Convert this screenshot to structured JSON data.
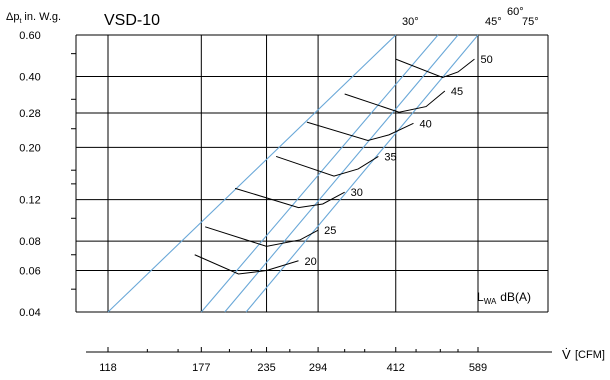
{
  "chart_data": {
    "type": "line",
    "title": "VSD-10",
    "ylabel": "Δp",
    "ylabel_sub": "t",
    "ylabel_unit": "in. W.g.",
    "xlabel": "V̇",
    "xlabel_unit": "[CFM]",
    "x_ticks": [
      "118",
      "177",
      "235",
      "294",
      "412",
      "589"
    ],
    "y_ticks": [
      "0.60",
      "0.40",
      "0.28",
      "0.20",
      "0.12",
      "0.08",
      "0.06",
      "0.04"
    ],
    "legend": {
      "main": "L",
      "sub": "WA",
      "unit": "dB(A)"
    },
    "grid": true,
    "colors": {
      "angle_lines": "#6aa8d8",
      "curves": "#000000",
      "grid": "#000000"
    },
    "angle_lines": [
      {
        "label": "30°",
        "points": [
          [
            118,
            0.04
          ],
          [
            412,
            0.6
          ]
        ]
      },
      {
        "label": "45°",
        "points": [
          [
            177,
            0.04
          ],
          [
            495,
            0.6
          ]
        ]
      },
      {
        "label": "60°",
        "points": [
          [
            196,
            0.04
          ],
          [
            540,
            0.6
          ]
        ]
      },
      {
        "label": "75°",
        "points": [
          [
            215,
            0.04
          ],
          [
            589,
            0.6
          ]
        ]
      }
    ],
    "series": [
      {
        "name": "20",
        "points": [
          [
            172,
            0.07
          ],
          [
            208,
            0.058
          ],
          [
            235,
            0.06
          ],
          [
            270,
            0.066
          ]
        ]
      },
      {
        "name": "25",
        "points": [
          [
            180,
            0.092
          ],
          [
            235,
            0.076
          ],
          [
            272,
            0.081
          ],
          [
            294,
            0.089
          ]
        ]
      },
      {
        "name": "30",
        "points": [
          [
            205,
            0.134
          ],
          [
            270,
            0.111
          ],
          [
            300,
            0.115
          ],
          [
            330,
            0.129
          ]
        ]
      },
      {
        "name": "35",
        "points": [
          [
            245,
            0.183
          ],
          [
            315,
            0.151
          ],
          [
            350,
            0.162
          ],
          [
            382,
            0.183
          ]
        ]
      },
      {
        "name": "40",
        "points": [
          [
            280,
            0.256
          ],
          [
            365,
            0.214
          ],
          [
            400,
            0.226
          ],
          [
            445,
            0.253
          ]
        ]
      },
      {
        "name": "45",
        "points": [
          [
            330,
            0.337
          ],
          [
            418,
            0.282
          ],
          [
            470,
            0.298
          ],
          [
            510,
            0.347
          ]
        ]
      },
      {
        "name": "50",
        "points": [
          [
            412,
            0.474
          ],
          [
            505,
            0.396
          ],
          [
            540,
            0.418
          ],
          [
            580,
            0.474
          ]
        ]
      }
    ]
  }
}
